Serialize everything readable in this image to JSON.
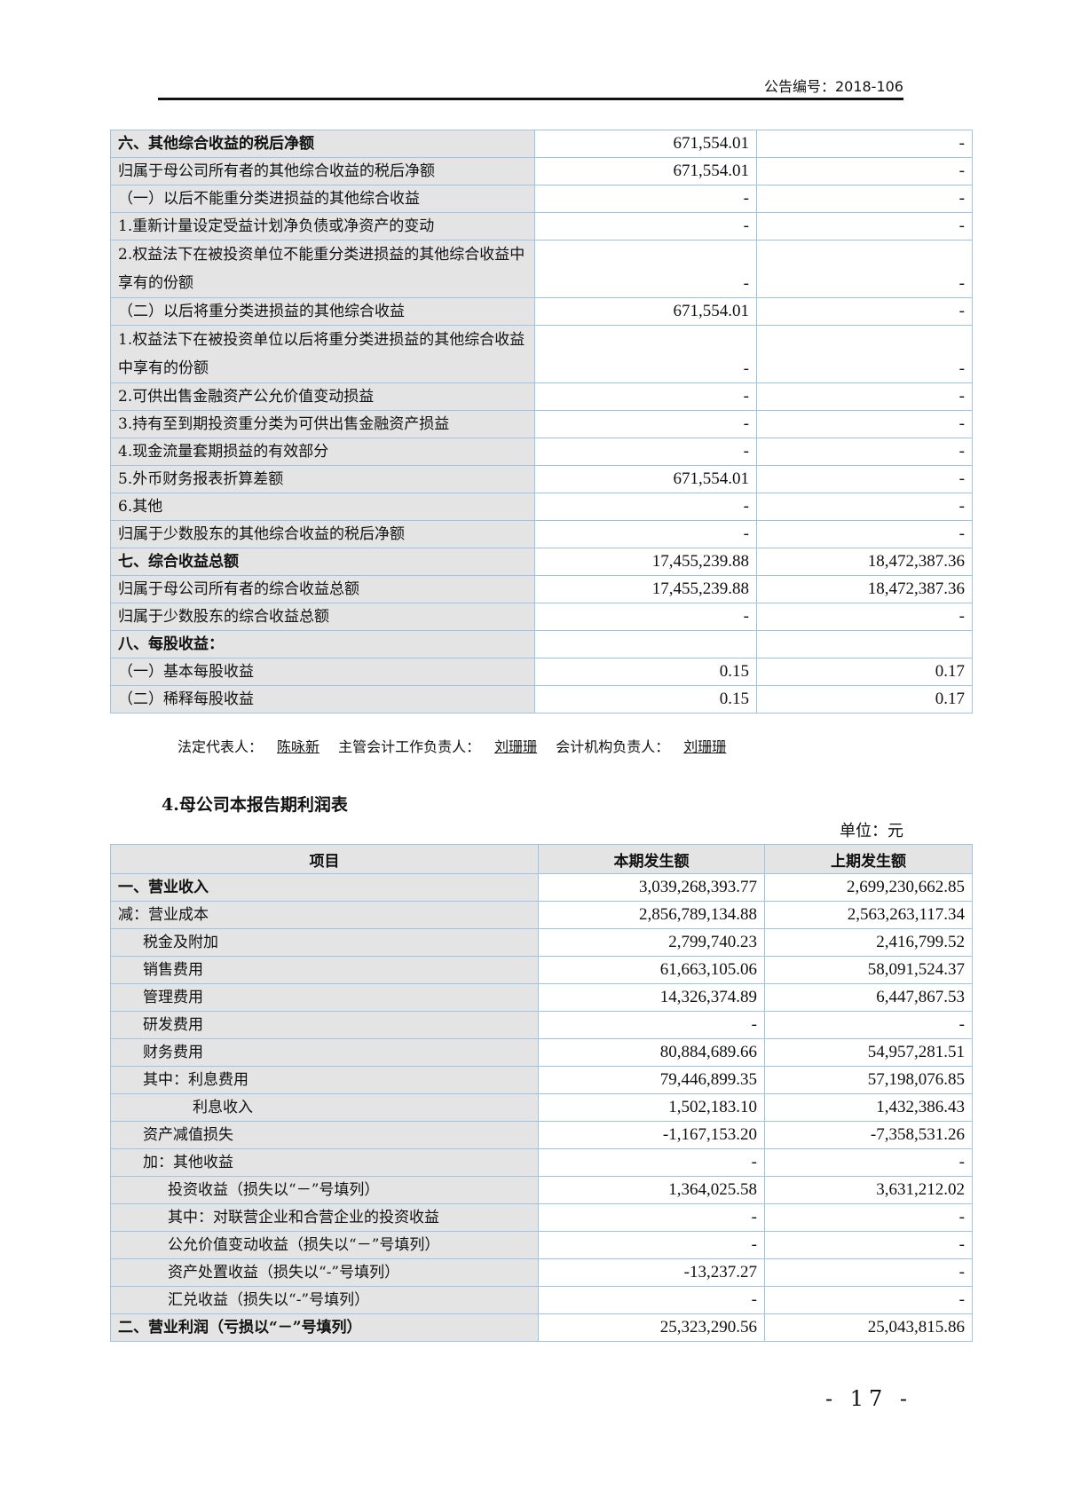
{
  "header": {
    "announcement_no": "公告编号：2018-106"
  },
  "table1": {
    "rows": [
      {
        "label": "六、其他综合收益的税后净额",
        "current": "671,554.01",
        "previous": "-",
        "bold": true,
        "indent": 0
      },
      {
        "label": "归属于母公司所有者的其他综合收益的税后净额",
        "current": "671,554.01",
        "previous": "-",
        "indent": 0
      },
      {
        "label": "（一）以后不能重分类进损益的其他综合收益",
        "current": "-",
        "previous": "-",
        "indent": 0
      },
      {
        "label": "1.重新计量设定受益计划净负债或净资产的变动",
        "current": "-",
        "previous": "-",
        "indent": 0
      },
      {
        "label": "2.权益法下在被投资单位不能重分类进损益的其他综合收益中享有的份额",
        "current": "-",
        "previous": "-",
        "indent": 0,
        "wrap": true
      },
      {
        "label": "（二）以后将重分类进损益的其他综合收益",
        "current": "671,554.01",
        "previous": "-",
        "indent": 0
      },
      {
        "label": "1.权益法下在被投资单位以后将重分类进损益的其他综合收益中享有的份额",
        "current": "-",
        "previous": "-",
        "indent": 0,
        "wrap": true
      },
      {
        "label": "2.可供出售金融资产公允价值变动损益",
        "current": "-",
        "previous": "-",
        "indent": 0
      },
      {
        "label": "3.持有至到期投资重分类为可供出售金融资产损益",
        "current": "-",
        "previous": "-",
        "indent": 0
      },
      {
        "label": "4.现金流量套期损益的有效部分",
        "current": "-",
        "previous": "-",
        "indent": 0
      },
      {
        "label": "5.外币财务报表折算差额",
        "current": "671,554.01",
        "previous": "-",
        "indent": 0
      },
      {
        "label": "6.其他",
        "current": "-",
        "previous": "-",
        "indent": 0
      },
      {
        "label": "归属于少数股东的其他综合收益的税后净额",
        "current": "-",
        "previous": "-",
        "indent": 0
      },
      {
        "label": "七、综合收益总额",
        "current": "17,455,239.88",
        "previous": "18,472,387.36",
        "bold": true,
        "indent": 0
      },
      {
        "label": "归属于母公司所有者的综合收益总额",
        "current": "17,455,239.88",
        "previous": "18,472,387.36",
        "indent": 0
      },
      {
        "label": "归属于少数股东的综合收益总额",
        "current": "-",
        "previous": "-",
        "indent": 0
      },
      {
        "label": "八、每股收益：",
        "current": "",
        "previous": "",
        "bold": true,
        "indent": 0
      },
      {
        "label": "（一）基本每股收益",
        "current": "0.15",
        "previous": "0.17",
        "indent": 0
      },
      {
        "label": "（二）稀释每股收益",
        "current": "0.15",
        "previous": "0.17",
        "indent": 0
      }
    ]
  },
  "signatures": {
    "legal_rep_label": "法定代表人：",
    "legal_rep": "陈咏新",
    "chief_accountant_label": "主管会计工作负责人：",
    "chief_accountant": "刘珊珊",
    "accounting_head_label": "会计机构负责人：",
    "accounting_head": "刘珊珊"
  },
  "section2": {
    "title": "4.母公司本报告期利润表",
    "unit": "单位：元"
  },
  "table2": {
    "headers": [
      "项目",
      "本期发生额",
      "上期发生额"
    ],
    "rows": [
      {
        "label": "一、营业收入",
        "current": "3,039,268,393.77",
        "previous": "2,699,230,662.85",
        "bold": true,
        "indent": 0
      },
      {
        "label": "减：营业成本",
        "current": "2,856,789,134.88",
        "previous": "2,563,263,117.34",
        "indent": 0
      },
      {
        "label": "税金及附加",
        "current": "2,799,740.23",
        "previous": "2,416,799.52",
        "indent": 1
      },
      {
        "label": "销售费用",
        "current": "61,663,105.06",
        "previous": "58,091,524.37",
        "indent": 1
      },
      {
        "label": "管理费用",
        "current": "14,326,374.89",
        "previous": "6,447,867.53",
        "indent": 1
      },
      {
        "label": "研发费用",
        "current": "-",
        "previous": "-",
        "indent": 1
      },
      {
        "label": "财务费用",
        "current": "80,884,689.66",
        "previous": "54,957,281.51",
        "indent": 1
      },
      {
        "label": "其中：利息费用",
        "current": "79,446,899.35",
        "previous": "57,198,076.85",
        "indent": 1
      },
      {
        "label": "利息收入",
        "current": "1,502,183.10",
        "previous": "1,432,386.43",
        "indent": 3
      },
      {
        "label": "资产减值损失",
        "current": "-1,167,153.20",
        "previous": "-7,358,531.26",
        "indent": 1
      },
      {
        "label": "加：其他收益",
        "current": "-",
        "previous": "-",
        "indent": 1
      },
      {
        "label": "投资收益（损失以“－”号填列）",
        "current": "1,364,025.58",
        "previous": "3,631,212.02",
        "indent": 2
      },
      {
        "label": "其中：对联营企业和合营企业的投资收益",
        "current": "-",
        "previous": "-",
        "indent": 2
      },
      {
        "label": "公允价值变动收益（损失以“－”号填列）",
        "current": "-",
        "previous": "-",
        "indent": 2
      },
      {
        "label": "资产处置收益（损失以“-”号填列）",
        "current": "-13,237.27",
        "previous": "-",
        "indent": 2
      },
      {
        "label": "汇兑收益（损失以“-”号填列）",
        "current": "-",
        "previous": "-",
        "indent": 2
      },
      {
        "label": "二、营业利润（亏损以“－”号填列）",
        "current": "25,323,290.56",
        "previous": "25,043,815.86",
        "bold": true,
        "indent": 0
      }
    ]
  },
  "footer": {
    "page_number": "- 17 -"
  }
}
